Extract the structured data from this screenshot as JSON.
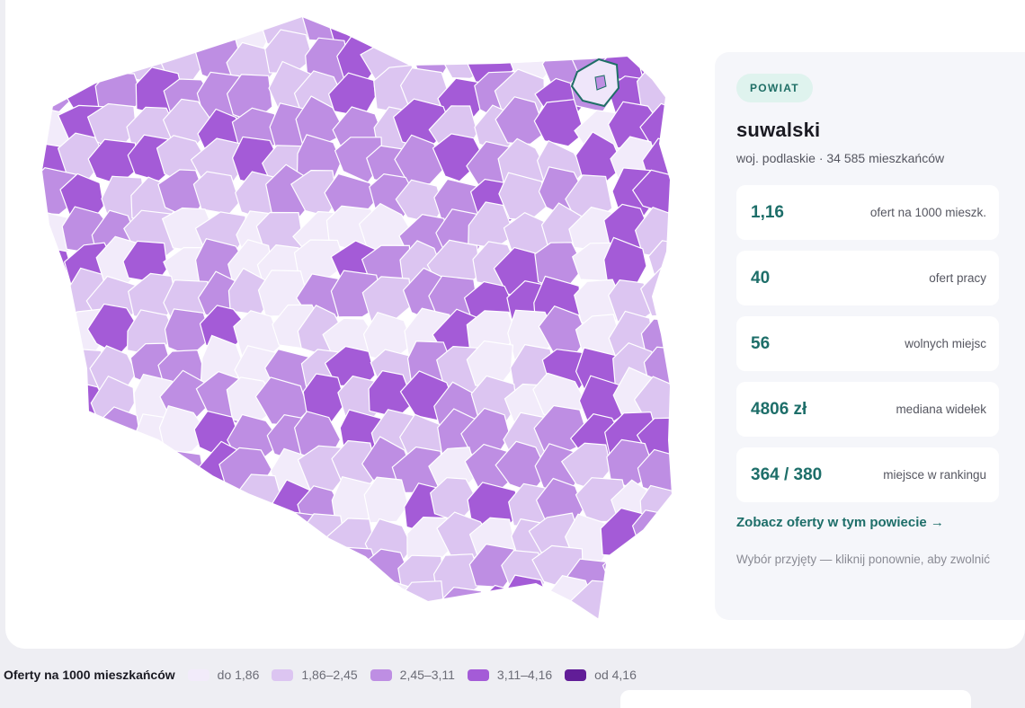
{
  "map": {
    "legend_colors": [
      "#f2ebfa",
      "#dcc5f1",
      "#be8ee3",
      "#a45bd7",
      "#611d97"
    ],
    "selected_outline": "#1f6f66",
    "selected_region": "suwalski"
  },
  "panel": {
    "badge": "POWIAT",
    "name": "suwalski",
    "subtitle": "woj. podlaskie · 34 585 mieszkańców",
    "stats": [
      {
        "value": "1,16",
        "label": "ofert na 1000 mieszk."
      },
      {
        "value": "40",
        "label": "ofert pracy"
      },
      {
        "value": "56",
        "label": "wolnych miejsc"
      },
      {
        "value": "4806 zł",
        "label": "mediana widełek"
      },
      {
        "value": "364 / 380",
        "label": "miejsce w rankingu"
      }
    ],
    "link": "Zobacz oferty w tym powiecie →",
    "hint": "Wybór przyjęty — kliknij ponownie, aby zwolnić"
  },
  "legend": {
    "title": "Oferty na 1000 mieszkańców",
    "items": [
      {
        "label": "do 1,86",
        "color": "#f2ebfa"
      },
      {
        "label": "1,86–2,45",
        "color": "#dcc5f1"
      },
      {
        "label": "2,45–3,11",
        "color": "#be8ee3"
      },
      {
        "label": "3,11–4,16",
        "color": "#a45bd7"
      },
      {
        "label": "od 4,16",
        "color": "#611d97"
      }
    ]
  }
}
